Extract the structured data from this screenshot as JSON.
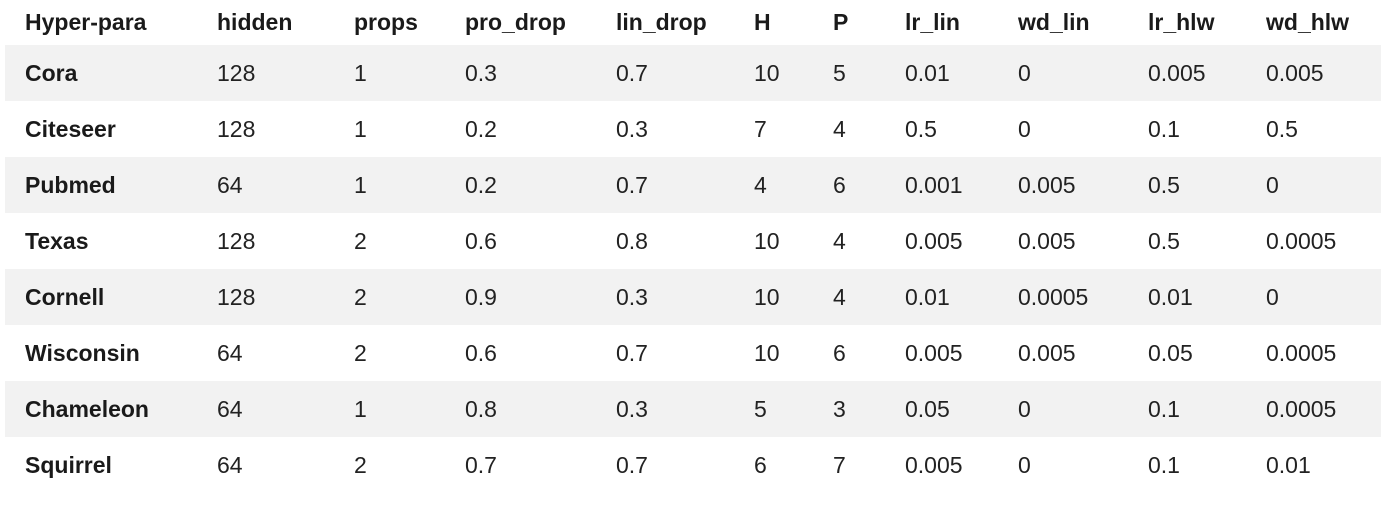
{
  "table": {
    "headers": [
      "Hyper-para",
      "hidden",
      "props",
      "pro_drop",
      "lin_drop",
      "H",
      "P",
      "lr_lin",
      "wd_lin",
      "lr_hlw",
      "wd_hlw"
    ],
    "rows": [
      [
        "Cora",
        "128",
        "1",
        "0.3",
        "0.7",
        "10",
        "5",
        "0.01",
        "0",
        "0.005",
        "0.005"
      ],
      [
        "Citeseer",
        "128",
        "1",
        "0.2",
        "0.3",
        "7",
        "4",
        "0.5",
        "0",
        "0.1",
        "0.5"
      ],
      [
        "Pubmed",
        "64",
        "1",
        "0.2",
        "0.7",
        "4",
        "6",
        "0.001",
        "0.005",
        "0.5",
        "0"
      ],
      [
        "Texas",
        "128",
        "2",
        "0.6",
        "0.8",
        "10",
        "4",
        "0.005",
        "0.005",
        "0.5",
        "0.0005"
      ],
      [
        "Cornell",
        "128",
        "2",
        "0.9",
        "0.3",
        "10",
        "4",
        "0.01",
        "0.0005",
        "0.01",
        "0"
      ],
      [
        "Wisconsin",
        "64",
        "2",
        "0.6",
        "0.7",
        "10",
        "6",
        "0.005",
        "0.005",
        "0.05",
        "0.0005"
      ],
      [
        "Chameleon",
        "64",
        "1",
        "0.8",
        "0.3",
        "5",
        "3",
        "0.05",
        "0",
        "0.1",
        "0.0005"
      ],
      [
        "Squirrel",
        "64",
        "2",
        "0.7",
        "0.7",
        "6",
        "7",
        "0.005",
        "0",
        "0.1",
        "0.01"
      ]
    ]
  },
  "style": {
    "stripe_color": "#f2f2f2",
    "text_color": "#1a1a1a"
  }
}
